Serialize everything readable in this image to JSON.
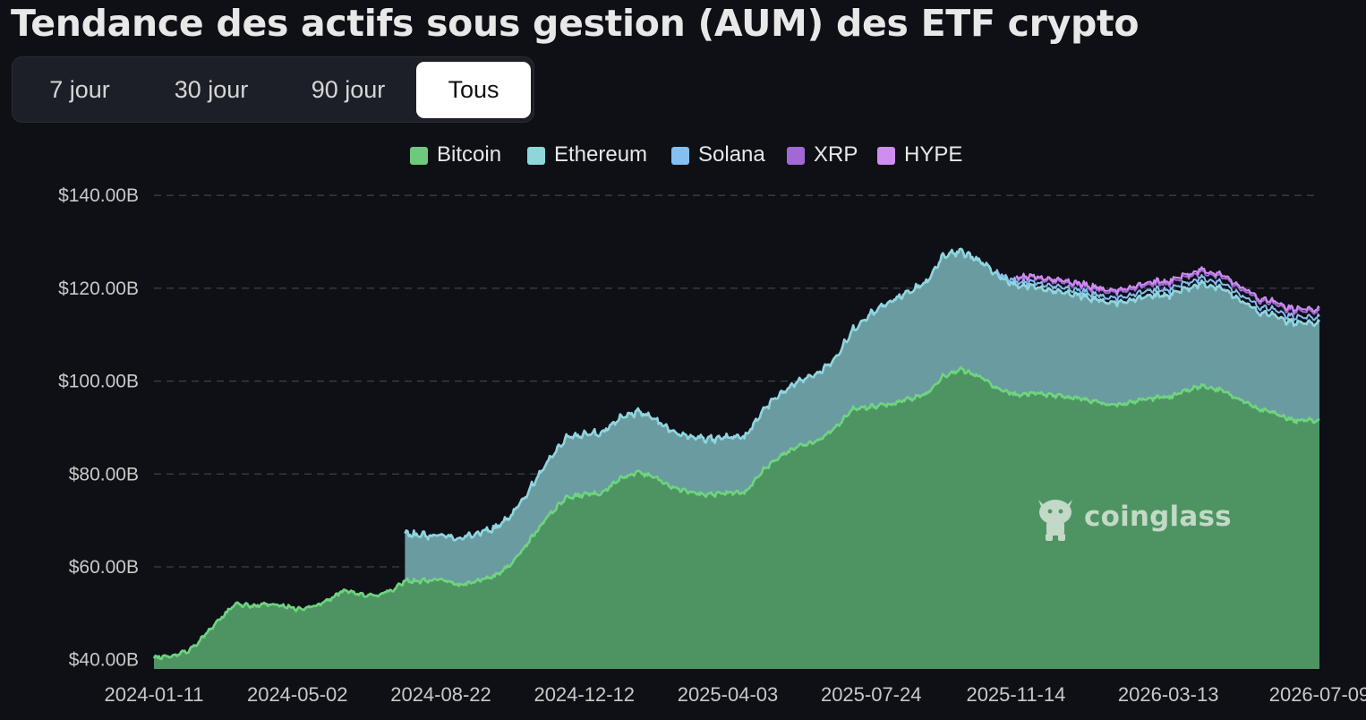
{
  "title": "Tendance des actifs sous gestion (AUM) des ETF crypto",
  "tabs": [
    {
      "label": "7 jour",
      "active": false
    },
    {
      "label": "30 jour",
      "active": false
    },
    {
      "label": "90 jour",
      "active": false
    },
    {
      "label": "Tous",
      "active": true
    }
  ],
  "watermark": {
    "text": "coinglass",
    "icon": "coinglass-logo-icon"
  },
  "colors": {
    "background": "#0e1016",
    "bitcoin_fill": "#4e9462",
    "bitcoin_line": "#6fd47f",
    "ethereum_fill": "#6a9ba0",
    "ethereum_line": "#8fd6e0",
    "solana_line": "#85bff0",
    "xrp_line": "#a468d6",
    "hype_line": "#d08df0",
    "grid": "#4a4d55"
  },
  "chart_data": {
    "type": "area",
    "stacked": true,
    "title": "Tendance des actifs sous gestion (AUM) des ETF crypto",
    "xlabel": "",
    "ylabel": "",
    "ylim": [
      38,
      141
    ],
    "y_ticks": [
      "$40.00B",
      "$60.00B",
      "$80.00B",
      "$100.00B",
      "$120.00B",
      "$140.00B"
    ],
    "y_tick_values": [
      40,
      60,
      80,
      100,
      120,
      140
    ],
    "x_ticks": [
      "2024-01-11",
      "2024-05-02",
      "2024-08-22",
      "2024-12-12",
      "2025-04-03",
      "2025-07-24",
      "2025-11-14",
      "2026-03-13",
      "2026-07-09"
    ],
    "xlim": [
      "2024-01-11",
      "2026-07-09"
    ],
    "grid": true,
    "legend_position": "top-center",
    "series": [
      {
        "name": "Bitcoin",
        "color": "#4e9462",
        "points": [
          [
            "2024-01-11",
            40.5
          ],
          [
            "2024-01-25",
            40.8
          ],
          [
            "2024-02-08",
            42
          ],
          [
            "2024-02-22",
            46
          ],
          [
            "2024-03-07",
            50
          ],
          [
            "2024-03-14",
            52
          ],
          [
            "2024-03-28",
            51.5
          ],
          [
            "2024-04-11",
            52
          ],
          [
            "2024-04-25",
            51.5
          ],
          [
            "2024-05-02",
            50.8
          ],
          [
            "2024-05-16",
            51.5
          ],
          [
            "2024-05-30",
            53.5
          ],
          [
            "2024-06-07",
            55
          ],
          [
            "2024-06-20",
            54
          ],
          [
            "2024-07-04",
            53.8
          ],
          [
            "2024-07-18",
            55.5
          ],
          [
            "2024-07-25",
            57
          ],
          [
            "2024-08-08",
            57
          ],
          [
            "2024-08-22",
            57.3
          ],
          [
            "2024-09-05",
            56
          ],
          [
            "2024-09-19",
            57
          ],
          [
            "2024-10-03",
            58
          ],
          [
            "2024-10-17",
            61
          ],
          [
            "2024-10-31",
            66
          ],
          [
            "2024-11-14",
            71
          ],
          [
            "2024-11-28",
            75
          ],
          [
            "2024-12-12",
            75.5
          ],
          [
            "2024-12-26",
            76
          ],
          [
            "2025-01-09",
            79
          ],
          [
            "2025-01-23",
            80.5
          ],
          [
            "2025-02-06",
            79
          ],
          [
            "2025-02-20",
            77
          ],
          [
            "2025-03-06",
            76
          ],
          [
            "2025-03-20",
            75.5
          ],
          [
            "2025-04-03",
            76
          ],
          [
            "2025-04-17",
            76
          ],
          [
            "2025-05-01",
            81
          ],
          [
            "2025-05-15",
            84
          ],
          [
            "2025-05-29",
            86
          ],
          [
            "2025-06-12",
            87
          ],
          [
            "2025-06-26",
            90
          ],
          [
            "2025-07-10",
            94
          ],
          [
            "2025-07-24",
            94.5
          ],
          [
            "2025-08-07",
            95
          ],
          [
            "2025-08-21",
            96
          ],
          [
            "2025-09-04",
            97
          ],
          [
            "2025-09-18",
            101
          ],
          [
            "2025-10-02",
            102.5
          ],
          [
            "2025-10-16",
            101
          ],
          [
            "2025-10-30",
            98.5
          ],
          [
            "2025-11-14",
            97
          ],
          [
            "2025-11-28",
            97.5
          ],
          [
            "2025-12-12",
            97
          ],
          [
            "2025-12-26",
            96.5
          ],
          [
            "2026-01-09",
            96
          ],
          [
            "2026-01-23",
            95
          ],
          [
            "2026-02-06",
            95
          ],
          [
            "2026-02-20",
            96
          ],
          [
            "2026-03-06",
            96.5
          ],
          [
            "2026-03-13",
            96.5
          ],
          [
            "2026-03-27",
            98
          ],
          [
            "2026-04-10",
            99
          ],
          [
            "2026-04-24",
            98
          ],
          [
            "2026-05-08",
            96
          ],
          [
            "2026-05-22",
            94
          ],
          [
            "2026-06-05",
            93
          ],
          [
            "2026-06-19",
            91.5
          ],
          [
            "2026-07-09",
            91.5
          ]
        ]
      },
      {
        "name": "Ethereum",
        "color": "#6a9ba0",
        "points": [
          [
            "2024-07-25",
            10.2
          ],
          [
            "2024-08-08",
            9.8
          ],
          [
            "2024-08-22",
            9.5
          ],
          [
            "2024-09-05",
            10
          ],
          [
            "2024-09-19",
            10.3
          ],
          [
            "2024-10-03",
            10.2
          ],
          [
            "2024-10-17",
            10.5
          ],
          [
            "2024-10-31",
            11
          ],
          [
            "2024-11-14",
            12
          ],
          [
            "2024-11-28",
            13
          ],
          [
            "2024-12-12",
            13
          ],
          [
            "2024-12-26",
            13
          ],
          [
            "2025-01-09",
            13
          ],
          [
            "2025-01-23",
            13
          ],
          [
            "2025-02-06",
            12.5
          ],
          [
            "2025-02-20",
            12
          ],
          [
            "2025-03-06",
            12
          ],
          [
            "2025-03-20",
            12
          ],
          [
            "2025-04-03",
            12
          ],
          [
            "2025-04-17",
            12
          ],
          [
            "2025-05-01",
            13
          ],
          [
            "2025-05-15",
            13.5
          ],
          [
            "2025-05-29",
            14
          ],
          [
            "2025-06-12",
            14.5
          ],
          [
            "2025-06-26",
            15
          ],
          [
            "2025-07-10",
            17
          ],
          [
            "2025-07-24",
            20
          ],
          [
            "2025-08-07",
            22
          ],
          [
            "2025-08-21",
            23
          ],
          [
            "2025-09-04",
            24
          ],
          [
            "2025-09-18",
            26
          ],
          [
            "2025-10-02",
            25.5
          ],
          [
            "2025-10-16",
            25
          ],
          [
            "2025-10-30",
            24.5
          ],
          [
            "2025-11-14",
            23.5
          ],
          [
            "2025-11-28",
            23
          ],
          [
            "2025-12-12",
            22.5
          ],
          [
            "2025-12-26",
            22.5
          ],
          [
            "2026-01-09",
            22
          ],
          [
            "2026-01-23",
            22
          ],
          [
            "2026-02-06",
            22
          ],
          [
            "2026-02-20",
            22
          ],
          [
            "2026-03-06",
            22
          ],
          [
            "2026-03-13",
            22
          ],
          [
            "2026-03-27",
            22
          ],
          [
            "2026-04-10",
            22
          ],
          [
            "2026-04-24",
            22
          ],
          [
            "2026-05-08",
            21.5
          ],
          [
            "2026-05-22",
            21
          ],
          [
            "2026-06-05",
            21
          ],
          [
            "2026-06-19",
            21
          ],
          [
            "2026-07-09",
            21
          ]
        ]
      },
      {
        "name": "Solana",
        "color": "#85bff0",
        "points": [
          [
            "2025-10-30",
            0.5
          ],
          [
            "2025-11-14",
            0.8
          ],
          [
            "2025-12-12",
            1
          ],
          [
            "2026-01-23",
            1
          ],
          [
            "2026-03-13",
            1.2
          ],
          [
            "2026-04-24",
            1.2
          ],
          [
            "2026-06-05",
            1.2
          ],
          [
            "2026-07-09",
            1.2
          ]
        ]
      },
      {
        "name": "XRP",
        "color": "#a468d6",
        "points": [
          [
            "2025-11-14",
            0.8
          ],
          [
            "2025-12-12",
            1.1
          ],
          [
            "2026-01-23",
            1.2
          ],
          [
            "2026-03-13",
            1.3
          ],
          [
            "2026-04-24",
            1.3
          ],
          [
            "2026-06-05",
            1.3
          ],
          [
            "2026-07-09",
            1.3
          ]
        ]
      },
      {
        "name": "HYPE",
        "color": "#d08df0",
        "points": [
          [
            "2025-11-14",
            0.3
          ],
          [
            "2025-12-12",
            0.4
          ],
          [
            "2026-03-13",
            0.5
          ],
          [
            "2026-07-09",
            0.5
          ]
        ]
      }
    ]
  }
}
